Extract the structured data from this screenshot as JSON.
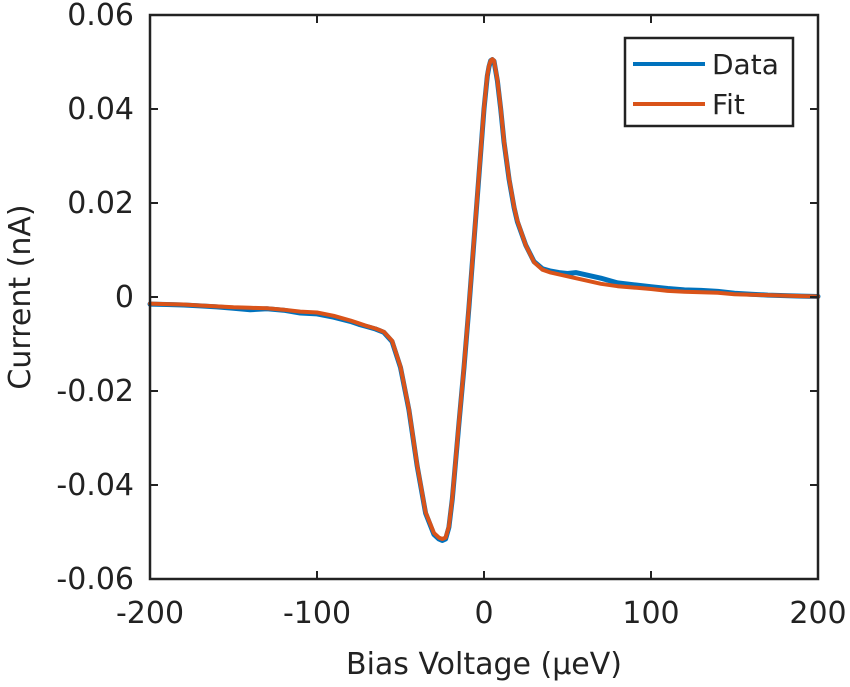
{
  "chart_data": {
    "type": "line",
    "title": "",
    "xlabel": "Bias Voltage (µeV)",
    "ylabel": "Current (nA)",
    "xlim": [
      -200,
      200
    ],
    "ylim": [
      -0.06,
      0.06
    ],
    "xticks": [
      -200,
      -100,
      0,
      100,
      200
    ],
    "xtick_labels": [
      "-200",
      "-100",
      "0",
      "100",
      "200"
    ],
    "yticks": [
      -0.06,
      -0.04,
      -0.02,
      0,
      0.02,
      0.04,
      0.06
    ],
    "ytick_labels": [
      "-0.06",
      "-0.04",
      "-0.02",
      "0",
      "0.02",
      "0.04",
      "0.06"
    ],
    "grid": false,
    "legend_position": "top-right",
    "colors": {
      "Data": "#0072BD",
      "Fit": "#D95319",
      "axis": "#222222"
    },
    "series": [
      {
        "name": "Data",
        "x": [
          -200,
          -190,
          -180,
          -170,
          -160,
          -150,
          -140,
          -130,
          -120,
          -110,
          -100,
          -90,
          -80,
          -75,
          -70,
          -65,
          -60,
          -55,
          -50,
          -45,
          -40,
          -35,
          -30,
          -27,
          -25,
          -23,
          -21,
          -19,
          -17,
          -15,
          -12,
          -9,
          -6,
          -3,
          0,
          2,
          3,
          4,
          5,
          6,
          8,
          10,
          12,
          15,
          18,
          20,
          25,
          30,
          35,
          40,
          45,
          50,
          55,
          60,
          70,
          80,
          90,
          100,
          110,
          120,
          130,
          140,
          150,
          160,
          170,
          180,
          190,
          200
        ],
        "y": [
          -0.0015,
          -0.0016,
          -0.0017,
          -0.0019,
          -0.0021,
          -0.0024,
          -0.0027,
          -0.0025,
          -0.0028,
          -0.0034,
          -0.0036,
          -0.0043,
          -0.0052,
          -0.0058,
          -0.0063,
          -0.0068,
          -0.0075,
          -0.0095,
          -0.015,
          -0.024,
          -0.036,
          -0.046,
          -0.0505,
          -0.0515,
          -0.0518,
          -0.0515,
          -0.049,
          -0.043,
          -0.035,
          -0.027,
          -0.015,
          -0.002,
          0.012,
          0.026,
          0.04,
          0.047,
          0.049,
          0.0503,
          0.0505,
          0.0502,
          0.046,
          0.04,
          0.033,
          0.025,
          0.019,
          0.016,
          0.011,
          0.0075,
          0.006,
          0.0055,
          0.0052,
          0.005,
          0.0052,
          0.0048,
          0.004,
          0.003,
          0.0026,
          0.0022,
          0.0018,
          0.0015,
          0.0014,
          0.0012,
          0.0008,
          0.0006,
          0.0004,
          0.0003,
          0.0002,
          0.0001
        ]
      },
      {
        "name": "Fit",
        "x": [
          -200,
          -190,
          -180,
          -170,
          -160,
          -150,
          -140,
          -130,
          -120,
          -110,
          -100,
          -90,
          -80,
          -75,
          -70,
          -65,
          -60,
          -55,
          -50,
          -45,
          -40,
          -35,
          -30,
          -27,
          -25,
          -23,
          -21,
          -19,
          -17,
          -15,
          -12,
          -9,
          -6,
          -3,
          0,
          2,
          3,
          4,
          5,
          6,
          8,
          10,
          12,
          15,
          18,
          20,
          25,
          30,
          35,
          40,
          45,
          50,
          55,
          60,
          70,
          80,
          90,
          100,
          110,
          120,
          130,
          140,
          150,
          160,
          170,
          180,
          190,
          200
        ],
        "y": [
          -0.0014,
          -0.0015,
          -0.0016,
          -0.0018,
          -0.002,
          -0.0022,
          -0.0023,
          -0.0024,
          -0.0027,
          -0.0031,
          -0.0033,
          -0.004,
          -0.005,
          -0.0056,
          -0.0062,
          -0.0067,
          -0.0074,
          -0.0093,
          -0.0148,
          -0.0238,
          -0.0358,
          -0.0458,
          -0.0502,
          -0.0512,
          -0.0515,
          -0.0512,
          -0.0488,
          -0.0428,
          -0.0348,
          -0.0268,
          -0.0148,
          -0.0018,
          0.0122,
          0.0262,
          0.0402,
          0.0472,
          0.0492,
          0.0503,
          0.0506,
          0.0503,
          0.0462,
          0.0402,
          0.0332,
          0.0252,
          0.0192,
          0.0162,
          0.011,
          0.0074,
          0.0058,
          0.0052,
          0.0048,
          0.0044,
          0.004,
          0.0036,
          0.0028,
          0.0023,
          0.002,
          0.0017,
          0.0013,
          0.0011,
          0.001,
          0.0009,
          0.0006,
          0.0005,
          0.0004,
          0.0003,
          0.0002,
          0.0001
        ]
      }
    ]
  }
}
